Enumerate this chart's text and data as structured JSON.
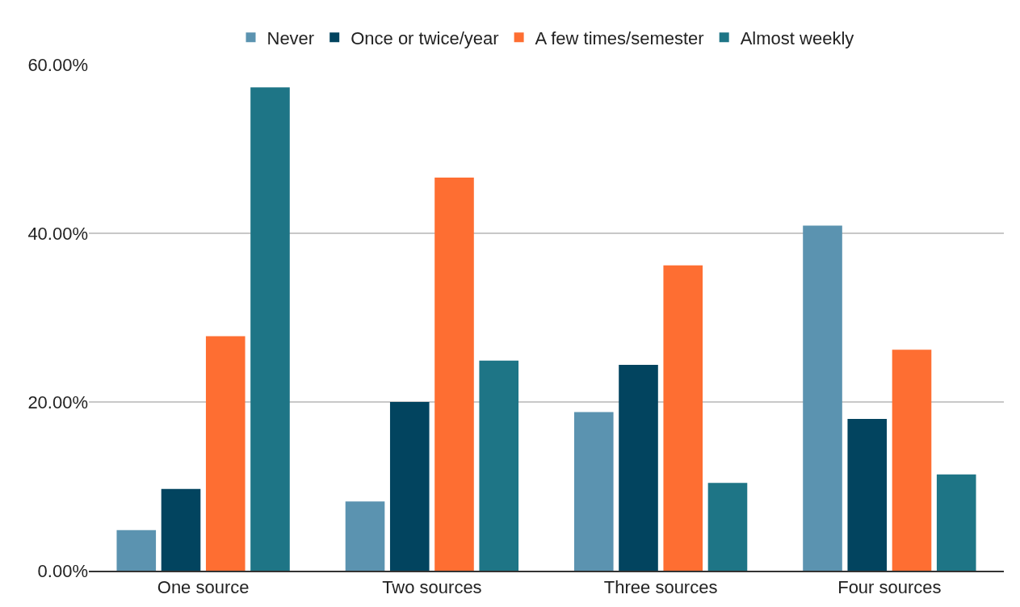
{
  "chart_data": {
    "type": "bar",
    "categories": [
      "One source",
      "Two sources",
      "Three sources",
      "Four sources"
    ],
    "series": [
      {
        "name": "Never",
        "color": "#5b93b0",
        "values": [
          4.8,
          8.2,
          18.8,
          40.9
        ]
      },
      {
        "name": "Once or twice/year",
        "color": "#02445f",
        "values": [
          9.7,
          20.0,
          24.4,
          18.0
        ]
      },
      {
        "name": "A few times/semester",
        "color": "#fe6e32",
        "values": [
          27.8,
          46.6,
          36.2,
          26.2
        ]
      },
      {
        "name": "Almost weekly",
        "color": "#1e7586",
        "values": [
          57.3,
          24.9,
          10.4,
          11.4
        ]
      }
    ],
    "ylim": [
      0,
      60
    ],
    "yticks": [
      {
        "value": 0,
        "label": "0.00%"
      },
      {
        "value": 20,
        "label": "20.00%"
      },
      {
        "value": 40,
        "label": "40.00%"
      },
      {
        "value": 60,
        "label": "60.00%"
      }
    ],
    "grid": "y",
    "legend": "top"
  }
}
